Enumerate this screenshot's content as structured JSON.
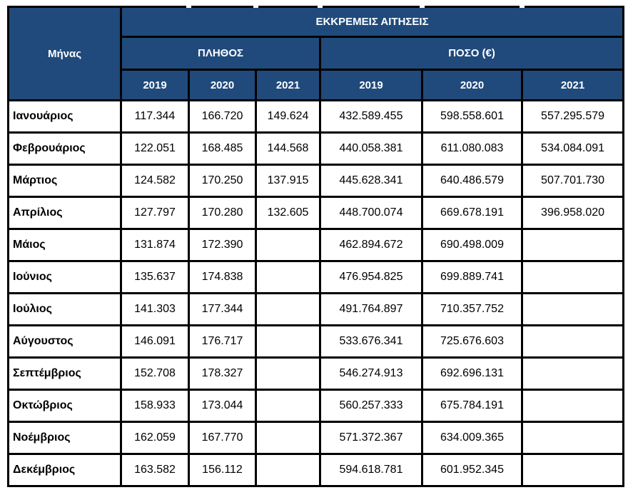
{
  "colors": {
    "header_bg": "#204A7B",
    "header_text": "#FFFFFF",
    "border": "#000000",
    "cell_bg": "#FFFFFF",
    "cell_text": "#000000"
  },
  "chart_data": {
    "type": "table",
    "title": "ΕΚΚΡΕΜΕΙΣ ΑΙΤΗΣΕΙΣ",
    "row_header": "Μήνας",
    "column_groups": [
      {
        "label": "ΠΛΗΘΟΣ",
        "years": [
          "2019",
          "2020",
          "2021"
        ]
      },
      {
        "label": "ΠΟΣΟ (€)",
        "years": [
          "2019",
          "2020",
          "2021"
        ]
      }
    ],
    "rows": [
      {
        "month": "Ιανουάριος",
        "values": [
          "117.344",
          "166.720",
          "149.624",
          "432.589.455",
          "598.558.601",
          "557.295.579"
        ]
      },
      {
        "month": "Φεβρουάριος",
        "values": [
          "122.051",
          "168.485",
          "144.568",
          "440.058.381",
          "611.080.083",
          "534.084.091"
        ]
      },
      {
        "month": "Μάρτιος",
        "values": [
          "124.582",
          "170.250",
          "137.915",
          "445.628.341",
          "640.486.579",
          "507.701.730"
        ]
      },
      {
        "month": "Απρίλιος",
        "values": [
          "127.797",
          "170.280",
          "132.605",
          "448.700.074",
          "669.678.191",
          "396.958.020"
        ]
      },
      {
        "month": "Μάιος",
        "values": [
          "131.874",
          "172.390",
          "",
          "462.894.672",
          "690.498.009",
          ""
        ]
      },
      {
        "month": "Ιούνιος",
        "values": [
          "135.637",
          "174.838",
          "",
          "476.954.825",
          "699.889.741",
          ""
        ]
      },
      {
        "month": "Ιούλιος",
        "values": [
          "141.303",
          "177.344",
          "",
          "491.764.897",
          "710.357.752",
          ""
        ]
      },
      {
        "month": "Αύγουστος",
        "values": [
          "146.091",
          "176.717",
          "",
          "533.676.341",
          "725.676.603",
          ""
        ]
      },
      {
        "month": "Σεπτέμβριος",
        "values": [
          "152.708",
          "178.327",
          "",
          "546.274.913",
          "692.696.131",
          ""
        ]
      },
      {
        "month": "Οκτώβριος",
        "values": [
          "158.933",
          "173.044",
          "",
          "560.257.333",
          "675.784.191",
          ""
        ]
      },
      {
        "month": "Νοέμβριος",
        "values": [
          "162.059",
          "167.770",
          "",
          "571.372.367",
          "634.009.365",
          ""
        ]
      },
      {
        "month": "Δεκέμβριος",
        "values": [
          "163.582",
          "156.112",
          "",
          "594.618.781",
          "601.952.345",
          ""
        ]
      }
    ]
  }
}
